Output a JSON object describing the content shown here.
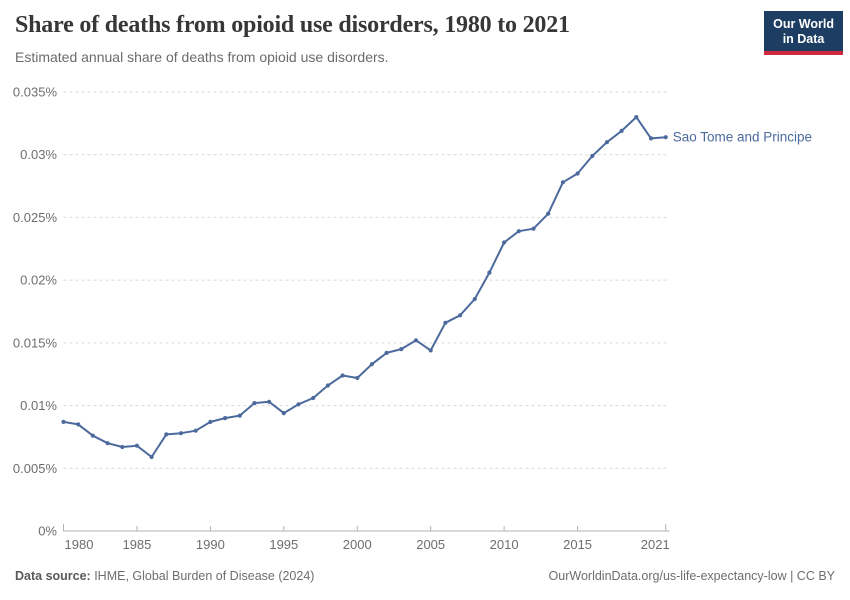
{
  "chart_data": {
    "type": "line",
    "title": "Share of deaths from opioid use disorders, 1980 to 2021",
    "subtitle": "Estimated annual share of deaths from opioid use disorders.",
    "x": [
      1980,
      1981,
      1982,
      1983,
      1984,
      1985,
      1986,
      1987,
      1988,
      1989,
      1990,
      1991,
      1992,
      1993,
      1994,
      1995,
      1996,
      1997,
      1998,
      1999,
      2000,
      2001,
      2002,
      2003,
      2004,
      2005,
      2006,
      2007,
      2008,
      2009,
      2010,
      2011,
      2012,
      2013,
      2014,
      2015,
      2016,
      2017,
      2018,
      2019,
      2020,
      2021
    ],
    "series": [
      {
        "name": "Sao Tome and Principe",
        "color": "#4c6a9c",
        "unit": "%",
        "values": [
          0.0087,
          0.0085,
          0.0076,
          0.007,
          0.0067,
          0.0068,
          0.0059,
          0.0077,
          0.0078,
          0.008,
          0.0087,
          0.009,
          0.0092,
          0.0102,
          0.0103,
          0.0094,
          0.0101,
          0.0106,
          0.0116,
          0.0124,
          0.0122,
          0.0133,
          0.0142,
          0.0145,
          0.0152,
          0.0144,
          0.0166,
          0.0172,
          0.0185,
          0.0206,
          0.023,
          0.0239,
          0.0241,
          0.0253,
          0.0278,
          0.0285,
          0.0299,
          0.031,
          0.0319,
          0.033,
          0.0313,
          0.0314
        ]
      }
    ],
    "x_ticks": [
      1980,
      1985,
      1990,
      1995,
      2000,
      2005,
      2010,
      2015,
      2021
    ],
    "x_tick_labels": [
      "1980",
      "1985",
      "1990",
      "1995",
      "2000",
      "2005",
      "2010",
      "2015",
      "2021"
    ],
    "y_ticks": [
      0,
      0.005,
      0.01,
      0.015,
      0.02,
      0.025,
      0.03,
      0.035
    ],
    "y_tick_labels": [
      "0%",
      "0.005%",
      "0.01%",
      "0.015%",
      "0.02%",
      "0.025%",
      "0.03%",
      "0.035%"
    ],
    "xlim": [
      1980,
      2021
    ],
    "ylim": [
      0,
      0.035
    ],
    "grid": "horizontal-dashed",
    "legend_position": "end-of-line-label"
  },
  "logo": {
    "line1": "Our World",
    "line2": "in Data",
    "bg_color": "#1d3d63",
    "accent_color": "#d1273f"
  },
  "footer": {
    "source_label": "Data source:",
    "source_text": " IHME, Global Burden of Disease (2024)",
    "attribution": "OurWorldinData.org/us-life-expectancy-low | CC BY"
  }
}
